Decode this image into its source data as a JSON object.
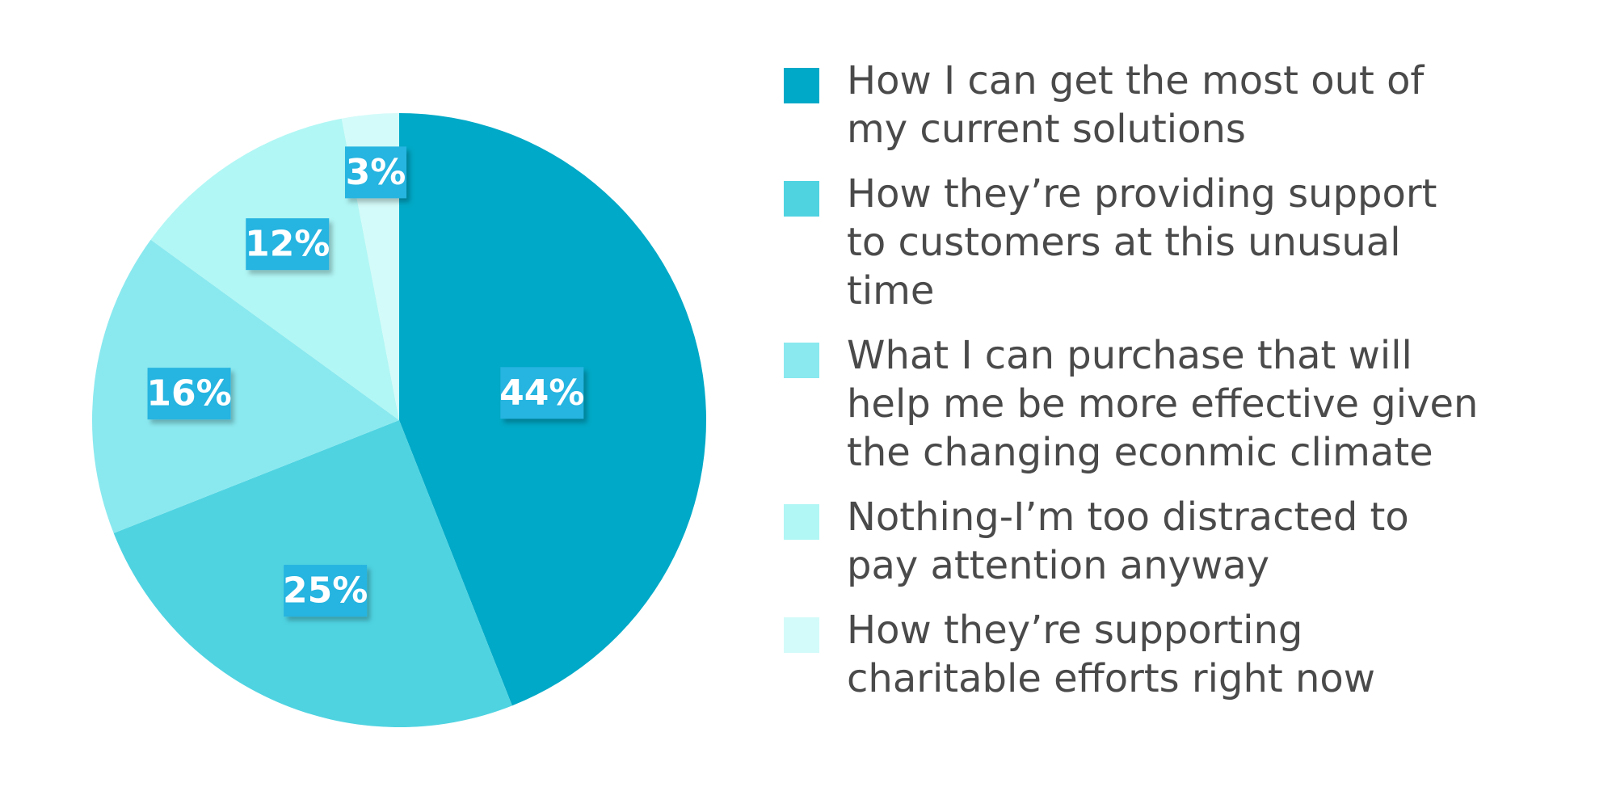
{
  "chart_data": {
    "type": "pie",
    "slices": [
      {
        "label": "How I can get the most out of my current solutions",
        "value": 44,
        "display": "44%",
        "color": "#00a9c7"
      },
      {
        "label": "How they’re providing support to customers at this unusual time",
        "value": 25,
        "display": "25%",
        "color": "#4fd3e1"
      },
      {
        "label": "What I can purchase that will help me be more effective given the changing econmic climate",
        "value": 16,
        "display": "16%",
        "color": "#8ae9ef"
      },
      {
        "label": "Nothing-I’m too distracted to pay attention anyway",
        "value": 12,
        "display": "12%",
        "color": "#b1f7f5"
      },
      {
        "label": "How they’re supporting charitable efforts right now",
        "value": 3,
        "display": "3%",
        "color": "#d3fbf9"
      }
    ],
    "label_box_color": "#27b4e0",
    "legend_placement": "right"
  }
}
